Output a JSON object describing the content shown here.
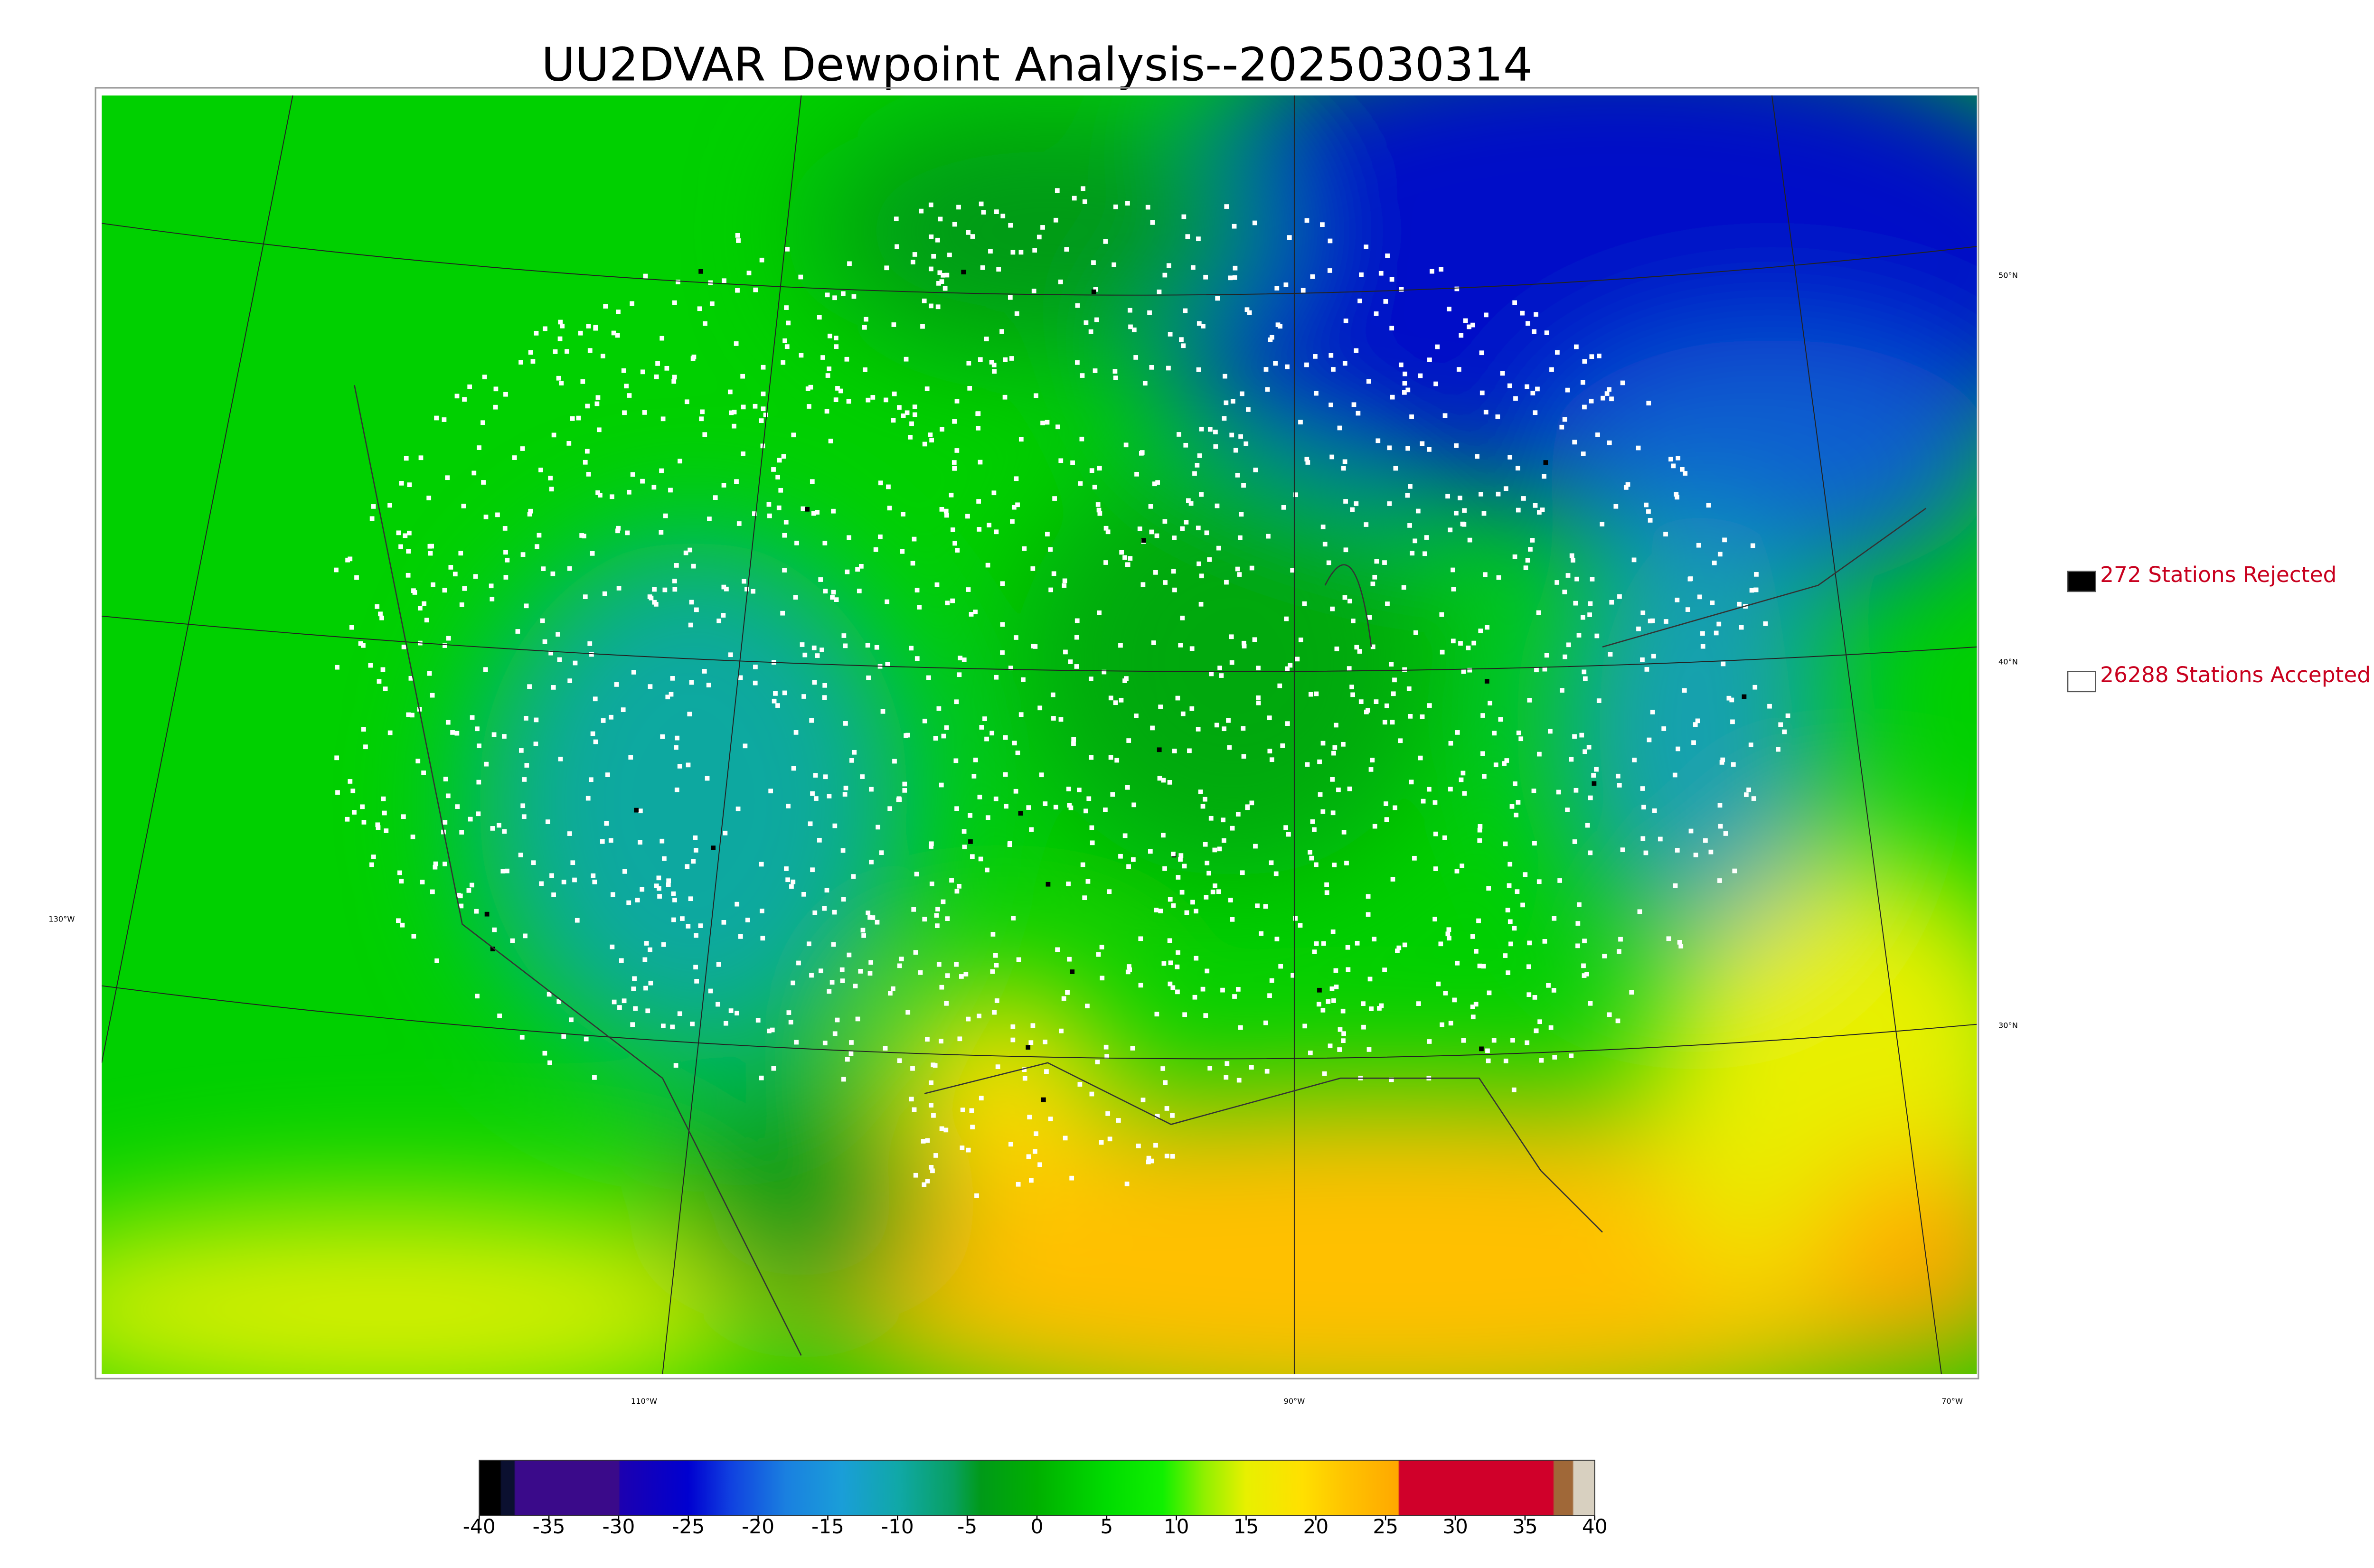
{
  "title": "UU2DVAR Dewpoint Analysis--2025030314",
  "latitude_labels": [
    "50°N",
    "40°N",
    "30°N"
  ],
  "longitude_labels": [
    "130°W",
    "110°W",
    "90°W",
    "70°W"
  ],
  "legend": [
    {
      "label": "272 Stations Rejected",
      "color": "#000000"
    },
    {
      "label": "26288 Stations Accepted",
      "color": "#ffffff"
    }
  ],
  "colorbar": {
    "range": [
      -40,
      40
    ],
    "ticks": [
      -40,
      -35,
      -30,
      -25,
      -20,
      -15,
      -10,
      -5,
      0,
      5,
      10,
      15,
      20,
      25,
      30,
      35,
      40
    ],
    "stops": [
      [
        -40,
        "#000000"
      ],
      [
        -38.5,
        "#000000"
      ],
      [
        -38.4,
        "#0b1030"
      ],
      [
        -37.5,
        "#0b1030"
      ],
      [
        -37.4,
        "#3a0a8a"
      ],
      [
        -30,
        "#3a0a8a"
      ],
      [
        -29.9,
        "#1c00b0"
      ],
      [
        -25,
        "#0000d0"
      ],
      [
        -22,
        "#1040e0"
      ],
      [
        -18,
        "#1a80e0"
      ],
      [
        -14,
        "#1a9ed8"
      ],
      [
        -10,
        "#10a8a8"
      ],
      [
        -6,
        "#08a060"
      ],
      [
        -4,
        "#009a18"
      ],
      [
        0,
        "#00b000"
      ],
      [
        5,
        "#00dc00"
      ],
      [
        9,
        "#10f000"
      ],
      [
        12,
        "#90f000"
      ],
      [
        15,
        "#e8f000"
      ],
      [
        19,
        "#ffe000"
      ],
      [
        22,
        "#ffc400"
      ],
      [
        25.9,
        "#ffa800"
      ],
      [
        26,
        "#d0002a"
      ],
      [
        37,
        "#d0002a"
      ],
      [
        37.1,
        "#a06838"
      ],
      [
        38.4,
        "#a06838"
      ],
      [
        38.5,
        "#d8d0c0"
      ],
      [
        40,
        "#d8d0c0"
      ]
    ]
  }
}
